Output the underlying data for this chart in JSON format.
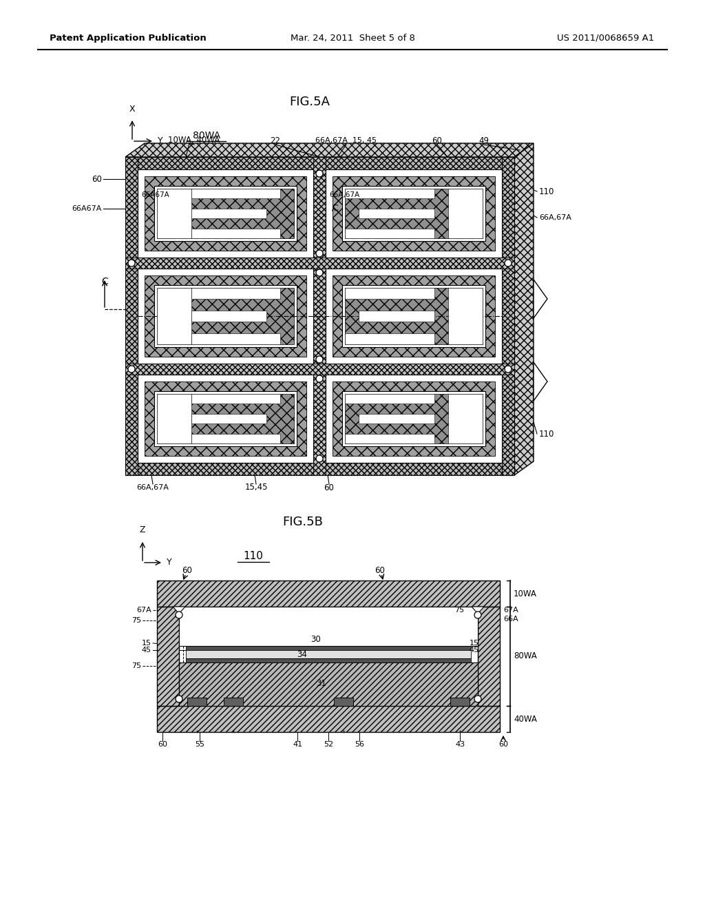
{
  "bg_color": "#ffffff",
  "header_left": "Patent Application Publication",
  "header_mid": "Mar. 24, 2011  Sheet 5 of 8",
  "header_right": "US 2011/0068659 A1"
}
